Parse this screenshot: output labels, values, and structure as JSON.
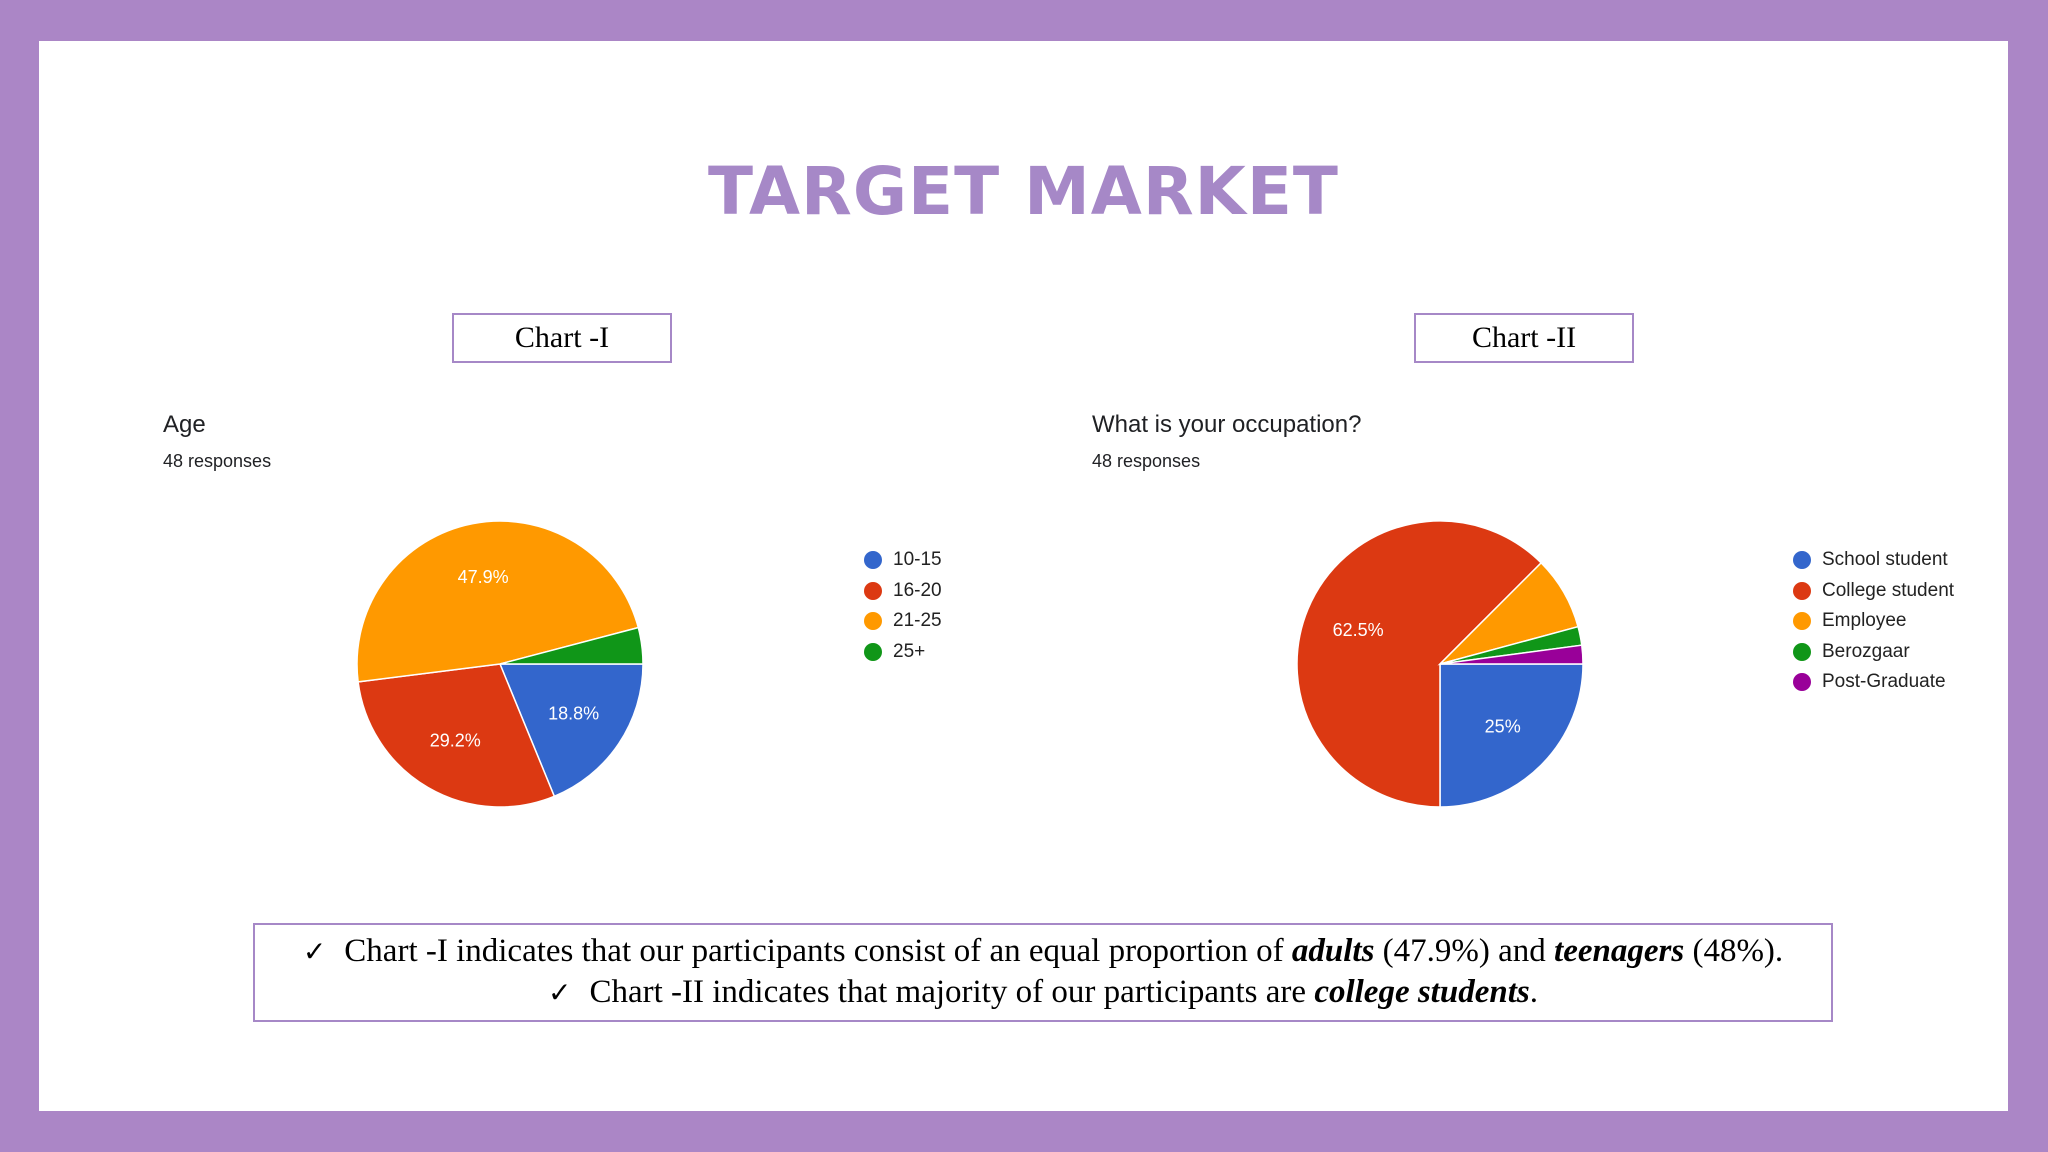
{
  "slide": {
    "title": "TARGET MARKET",
    "chart1_label": "Chart -I",
    "chart2_label": "Chart -II"
  },
  "chart_data": [
    {
      "type": "pie",
      "title": "Age",
      "subtitle": "48 responses",
      "start_angle_deg": 90,
      "direction": "clockwise",
      "categories": [
        "10-15",
        "16-20",
        "21-25",
        "25+"
      ],
      "values": [
        18.8,
        29.2,
        47.9,
        4.1
      ],
      "labels": [
        "18.8%",
        "29.2%",
        "47.9%",
        ""
      ],
      "colors": [
        "#3366cc",
        "#dc3912",
        "#ff9900",
        "#109618"
      ],
      "legend": "right"
    },
    {
      "type": "pie",
      "title": "What is your occupation?",
      "subtitle": "48 responses",
      "start_angle_deg": 90,
      "direction": "clockwise",
      "categories": [
        "School student",
        "College student",
        "Employee",
        "Berozgaar",
        "Post-Graduate"
      ],
      "values": [
        25,
        62.5,
        8.3,
        2.1,
        2.1
      ],
      "labels": [
        "25%",
        "62.5%",
        "",
        "",
        ""
      ],
      "colors": [
        "#3366cc",
        "#dc3912",
        "#ff9900",
        "#109618",
        "#990099"
      ],
      "legend": "right"
    }
  ],
  "summary": {
    "line1": {
      "check": "✓",
      "a": "Chart -I indicates that our participants consist of an equal proportion of ",
      "b": "adults",
      "c": " (47.9%) and ",
      "d": "teenagers",
      "e": " (48%)."
    },
    "line2": {
      "check": "✓",
      "a": "Chart -II indicates that majority of our participants are ",
      "b": "college students",
      "c": "."
    }
  }
}
